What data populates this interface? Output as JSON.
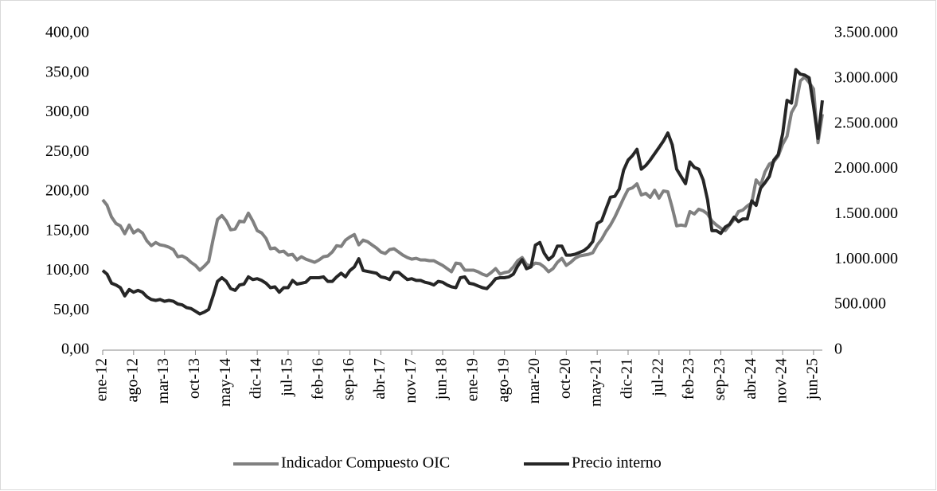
{
  "chart_data": {
    "type": "line",
    "categories": [
      "ene-12",
      null,
      null,
      null,
      null,
      null,
      null,
      "ago-12",
      null,
      null,
      null,
      null,
      null,
      null,
      "mar-13",
      null,
      null,
      null,
      null,
      null,
      null,
      "oct-13",
      null,
      null,
      null,
      null,
      null,
      null,
      "may-14",
      null,
      null,
      null,
      null,
      null,
      null,
      "dic-14",
      null,
      null,
      null,
      null,
      null,
      null,
      "jul-15",
      null,
      null,
      null,
      null,
      null,
      null,
      "feb-16",
      null,
      null,
      null,
      null,
      null,
      null,
      "sep-16",
      null,
      null,
      null,
      null,
      null,
      null,
      "abr-17",
      null,
      null,
      null,
      null,
      null,
      null,
      "nov-17",
      null,
      null,
      null,
      null,
      null,
      null,
      "jun-18",
      null,
      null,
      null,
      null,
      null,
      null,
      "ene-19",
      null,
      null,
      null,
      null,
      null,
      null,
      "ago-19",
      null,
      null,
      null,
      null,
      null,
      null,
      "mar-20",
      null,
      null,
      null,
      null,
      null,
      null,
      "oct-20",
      null,
      null,
      null,
      null,
      null,
      null,
      "may-21",
      null,
      null,
      null,
      null,
      null,
      null,
      "dic-21",
      null,
      null,
      null,
      null,
      null,
      null,
      "jul-22",
      null,
      null,
      null,
      null,
      null,
      null,
      "feb-23",
      null,
      null,
      null,
      null,
      null,
      null,
      "sep-23",
      null,
      null,
      null,
      null,
      null,
      null,
      "abr-24",
      null,
      null,
      null,
      null,
      null,
      null,
      "nov-24",
      null,
      null,
      null,
      null,
      null,
      null,
      "jun-25",
      null,
      null
    ],
    "series": [
      {
        "name": "Indicador Compuesto OIC",
        "color": "#808080",
        "values": [
          190,
          183,
          168,
          160,
          157,
          147,
          158,
          148,
          152,
          148,
          138,
          132,
          136,
          133,
          132,
          130,
          127,
          118,
          119,
          116,
          111,
          107,
          101,
          106,
          112,
          140,
          165,
          170,
          163,
          152,
          153,
          163,
          162,
          173,
          163,
          151,
          148,
          141,
          128,
          129,
          124,
          125,
          120,
          121,
          114,
          118,
          115,
          113,
          111,
          114,
          118,
          119,
          124,
          132,
          131,
          139,
          143,
          146,
          133,
          139,
          137,
          133,
          129,
          124,
          122,
          127,
          128,
          124,
          120,
          117,
          115,
          116,
          114,
          114,
          113,
          113,
          110,
          107,
          103,
          99,
          110,
          109,
          101,
          101,
          101,
          99,
          96,
          94,
          98,
          103,
          96,
          98,
          99,
          105,
          113,
          117,
          108,
          106,
          110,
          109,
          105,
          99,
          103,
          111,
          116,
          107,
          111,
          116,
          119,
          120,
          121,
          123,
          133,
          140,
          150,
          158,
          168,
          180,
          192,
          203,
          205,
          210,
          196,
          198,
          193,
          202,
          192,
          201,
          200,
          180,
          157,
          158,
          157,
          175,
          172,
          178,
          176,
          172,
          163,
          158,
          154,
          151,
          158,
          165,
          175,
          177,
          182,
          186,
          215,
          208,
          225,
          235,
          238,
          245,
          260,
          270,
          300,
          310,
          340,
          345,
          338,
          330,
          262,
          298
        ]
      },
      {
        "name": "Precio interno",
        "color": "#262626",
        "axis": "y2",
        "values": [
          880000,
          840000,
          740000,
          720000,
          690000,
          600000,
          670000,
          640000,
          660000,
          640000,
          590000,
          560000,
          550000,
          560000,
          540000,
          550000,
          540000,
          510000,
          500000,
          470000,
          460000,
          430000,
          400000,
          420000,
          450000,
          600000,
          760000,
          800000,
          760000,
          680000,
          660000,
          720000,
          730000,
          810000,
          780000,
          790000,
          770000,
          740000,
          690000,
          700000,
          640000,
          690000,
          690000,
          770000,
          730000,
          740000,
          750000,
          800000,
          800000,
          800000,
          810000,
          760000,
          760000,
          810000,
          850000,
          810000,
          880000,
          920000,
          1010000,
          880000,
          870000,
          860000,
          850000,
          810000,
          800000,
          780000,
          860000,
          860000,
          820000,
          780000,
          790000,
          770000,
          770000,
          750000,
          740000,
          720000,
          760000,
          750000,
          720000,
          700000,
          690000,
          800000,
          810000,
          740000,
          730000,
          710000,
          690000,
          680000,
          730000,
          790000,
          800000,
          800000,
          810000,
          840000,
          930000,
          1000000,
          900000,
          920000,
          1160000,
          1190000,
          1070000,
          1000000,
          1040000,
          1150000,
          1150000,
          1050000,
          1050000,
          1060000,
          1080000,
          1100000,
          1140000,
          1200000,
          1400000,
          1430000,
          1560000,
          1690000,
          1700000,
          1780000,
          1990000,
          2100000,
          2150000,
          2220000,
          2000000,
          2040000,
          2100000,
          2170000,
          2240000,
          2310000,
          2400000,
          2270000,
          2000000,
          1920000,
          1840000,
          2080000,
          2020000,
          2000000,
          1880000,
          1660000,
          1320000,
          1320000,
          1290000,
          1360000,
          1390000,
          1470000,
          1420000,
          1450000,
          1450000,
          1650000,
          1600000,
          1790000,
          1850000,
          1920000,
          2100000,
          2160000,
          2390000,
          2760000,
          2730000,
          3100000,
          3050000,
          3040000,
          3010000,
          2700000,
          2340000,
          2760000
        ]
      }
    ],
    "ylim": [
      0,
      400
    ],
    "yticks": [
      {
        "value": 0,
        "label": "0,00"
      },
      {
        "value": 50,
        "label": "50,00"
      },
      {
        "value": 100,
        "label": "100,00"
      },
      {
        "value": 150,
        "label": "150,00"
      },
      {
        "value": 200,
        "label": "200,00"
      },
      {
        "value": 250,
        "label": "250,00"
      },
      {
        "value": 300,
        "label": "300,00"
      },
      {
        "value": 350,
        "label": "350,00"
      },
      {
        "value": 400,
        "label": "400,00"
      }
    ],
    "y2lim": [
      0,
      3500000
    ],
    "y2ticks": [
      0,
      {
        "value": 500000,
        "label": "500.000"
      },
      {
        "value": 1000000,
        "label": "1.000.000"
      },
      {
        "value": 1500000,
        "label": "1.500.000"
      },
      {
        "value": 2000000,
        "label": "2.000.000"
      },
      {
        "value": 2500000,
        "label": "2.500.000"
      },
      {
        "value": 3000000,
        "label": "3.000.000"
      },
      {
        "value": 3500000,
        "label": "3.500.000"
      }
    ],
    "legend": "bottom"
  }
}
